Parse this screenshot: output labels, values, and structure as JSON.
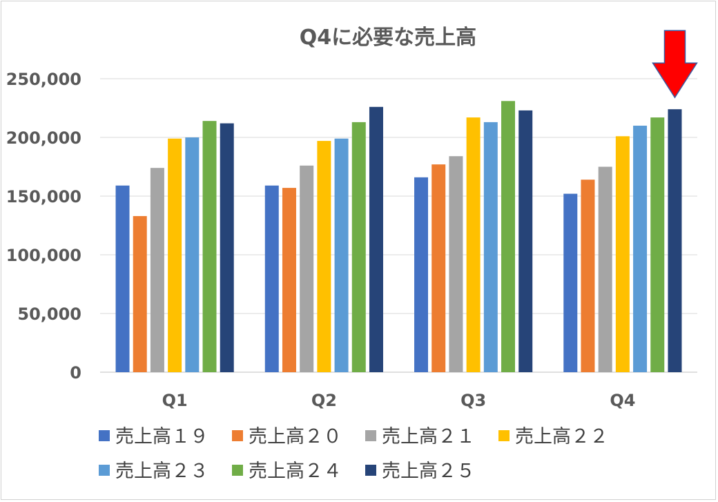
{
  "chart_data": {
    "type": "bar",
    "title": "Q4に必要な売上高",
    "xlabel": "",
    "ylabel": "",
    "categories": [
      "Q1",
      "Q2",
      "Q3",
      "Q4"
    ],
    "ylim": [
      0,
      250000
    ],
    "yticks": [
      0,
      50000,
      100000,
      150000,
      200000,
      250000
    ],
    "ytick_labels": [
      "0",
      "50,000",
      "100,000",
      "150,000",
      "200,000",
      "250,000"
    ],
    "grid": true,
    "legend_position": "bottom",
    "series": [
      {
        "name": "売上高１９",
        "color": "#4472C4",
        "values": [
          159000,
          159000,
          166000,
          152000
        ]
      },
      {
        "name": "売上高２０",
        "color": "#ED7D31",
        "values": [
          133000,
          157000,
          177000,
          164000
        ]
      },
      {
        "name": "売上高２１",
        "color": "#A5A5A5",
        "values": [
          174000,
          176000,
          184000,
          175000
        ]
      },
      {
        "name": "売上高２２",
        "color": "#FFC000",
        "values": [
          199000,
          197000,
          217000,
          201000
        ]
      },
      {
        "name": "売上高２３",
        "color": "#5B9BD5",
        "values": [
          200000,
          199000,
          213000,
          210000
        ]
      },
      {
        "name": "売上高２４",
        "color": "#70AD47",
        "values": [
          214000,
          213000,
          231000,
          217000
        ]
      },
      {
        "name": "売上高２５",
        "color": "#264478",
        "values": [
          212000,
          226000,
          223000,
          224000
        ]
      }
    ],
    "annotations": [
      {
        "type": "arrow",
        "color": "#FF0000",
        "points_to": {
          "category": "Q4",
          "series": "売上高２５"
        }
      }
    ]
  }
}
